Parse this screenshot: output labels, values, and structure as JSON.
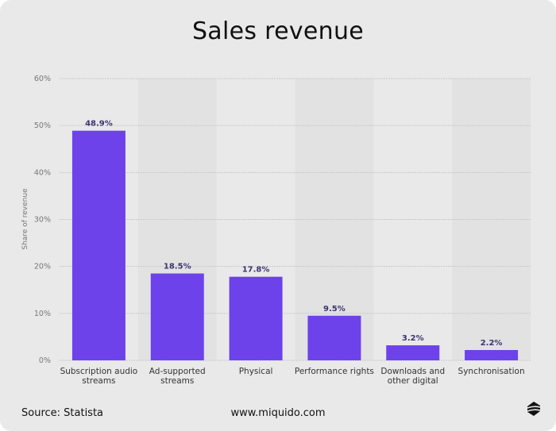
{
  "title": "Sales revenue",
  "footer": {
    "source": "Source: Statista",
    "website": "www.miquido.com"
  },
  "colors": {
    "bar": "#6d42ea",
    "label": "#3d3370",
    "background": "#e9e9e9",
    "band": "#e2e2e2"
  },
  "chart_data": {
    "type": "bar",
    "title": "Sales revenue",
    "xlabel": "",
    "ylabel": "Share of revenue",
    "ylim": [
      0,
      60
    ],
    "yticks": [
      "0%",
      "10%",
      "20%",
      "30%",
      "40%",
      "50%",
      "60%"
    ],
    "grid": true,
    "categories": [
      [
        "Subscription audio",
        "streams"
      ],
      [
        "Ad-supported",
        "streams"
      ],
      [
        "Physical"
      ],
      [
        "Performance rights"
      ],
      [
        "Downloads and",
        "other digital"
      ],
      [
        "Synchronisation"
      ]
    ],
    "values": [
      48.9,
      18.5,
      17.8,
      9.5,
      3.2,
      2.2
    ],
    "data_labels": [
      "48.9%",
      "18.5%",
      "17.8%",
      "9.5%",
      "3.2%",
      "2.2%"
    ]
  }
}
